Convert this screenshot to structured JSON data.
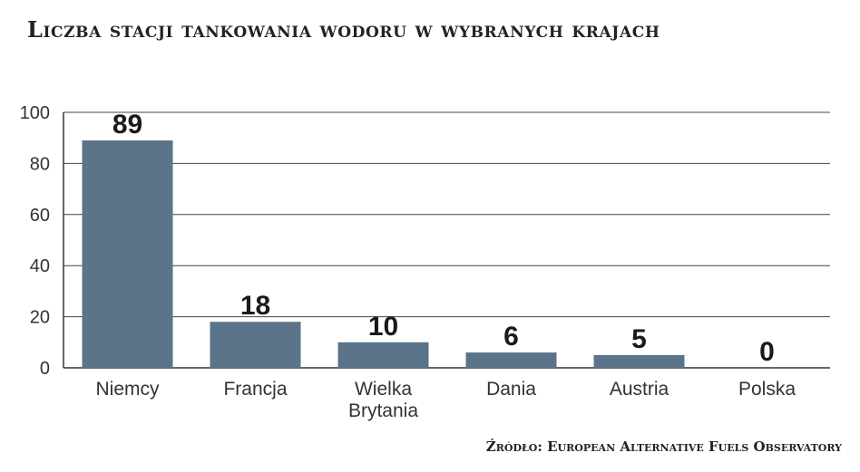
{
  "title": "Liczba stacji tankowania wodoru w wybranych krajach",
  "source": "Źródło: European Alternative Fuels Observatory",
  "colors": {
    "bar": "#5b7489",
    "grid": "#444444",
    "axis": "#333333"
  },
  "chart_data": {
    "type": "bar",
    "categories": [
      "Niemcy",
      "Francja",
      "Wielka Brytania",
      "Dania",
      "Austria",
      "Polska"
    ],
    "category_lines": [
      [
        "Niemcy"
      ],
      [
        "Francja"
      ],
      [
        "Wielka",
        "Brytania"
      ],
      [
        "Dania"
      ],
      [
        "Austria"
      ],
      [
        "Polska"
      ]
    ],
    "values": [
      89,
      18,
      10,
      6,
      5,
      0
    ],
    "data_labels": [
      "89",
      "18",
      "10",
      "6",
      "5",
      "0"
    ],
    "yticks": [
      0,
      20,
      40,
      60,
      80,
      100
    ],
    "ylim": [
      0,
      100
    ],
    "grid": true,
    "legend": "none",
    "title": "Liczba stacji tankowania wodoru w wybranych krajach",
    "xlabel": "",
    "ylabel": ""
  }
}
